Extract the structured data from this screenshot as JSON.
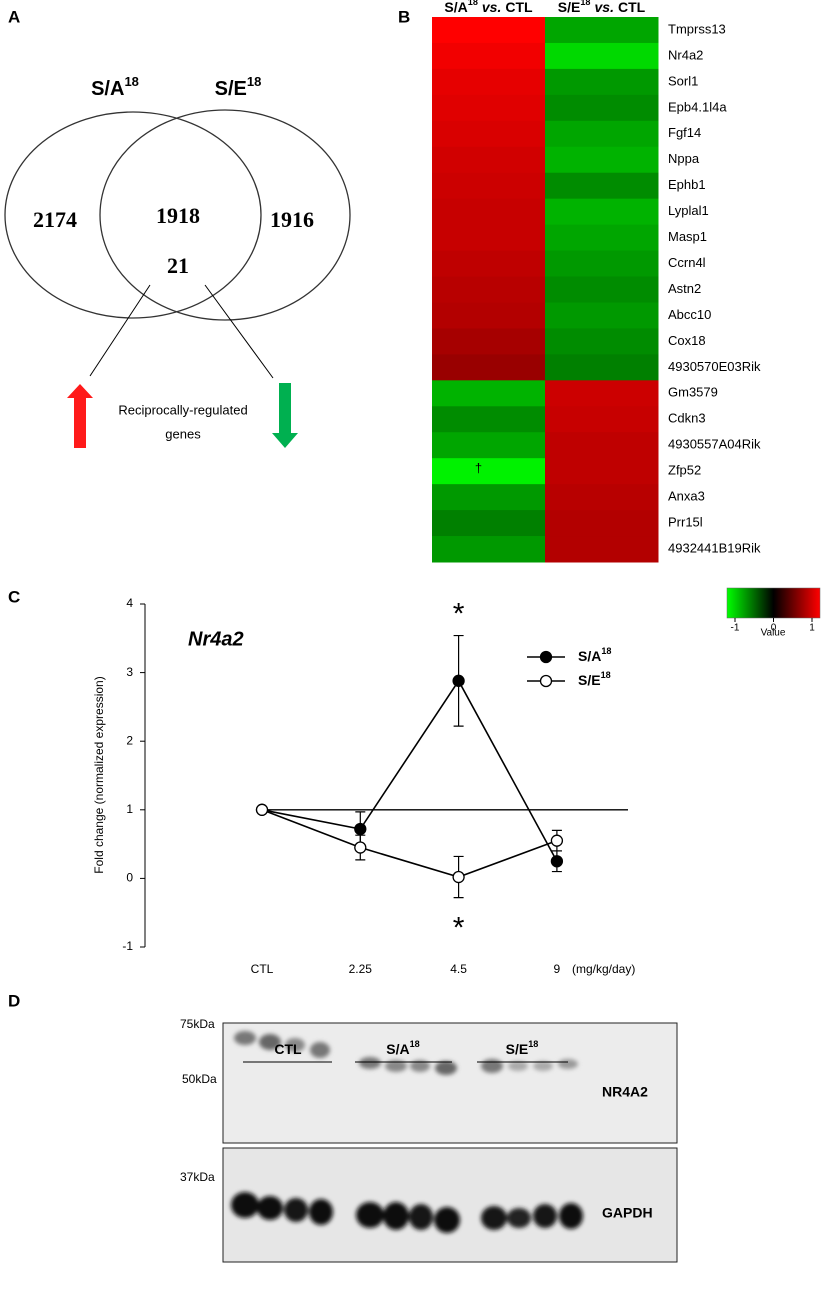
{
  "panel_a": {
    "label": "A",
    "sets": [
      {
        "name": "S/A",
        "sup": "18"
      },
      {
        "name": "S/E",
        "sup": "18"
      }
    ],
    "counts": {
      "only_first": 2174,
      "both": 1918,
      "only_second": 1916,
      "reciprocal": 21
    },
    "annotation": [
      "Reciprocally-regulated",
      "genes"
    ]
  },
  "panel_b": {
    "label": "B",
    "columns": [
      {
        "name": "S/A",
        "sup": "18",
        "vs": "vs.",
        "ref": "CTL"
      },
      {
        "name": "S/E",
        "sup": "18",
        "vs": "vs.",
        "ref": "CTL"
      }
    ],
    "genes": [
      "Tmprss13",
      "Nr4a2",
      "Sorl1",
      "Epb4.1l4a",
      "Fgf14",
      "Nppa",
      "Ephb1",
      "Lyplal1",
      "Masp1",
      "Ccrn4l",
      "Astn2",
      "Abcc10",
      "Cox18",
      "4930570E03Rik",
      "Gm3579",
      "Cdkn3",
      "4930557A04Rik",
      "Zfp52",
      "Anxa3",
      "Prr15l",
      "4932441B19Rik"
    ],
    "values": [
      [
        1.0,
        0.95,
        0.9,
        0.88,
        0.85,
        0.82,
        0.8,
        0.78,
        0.78,
        0.75,
        0.72,
        0.7,
        0.65,
        0.6,
        -0.7,
        -0.55,
        -0.65,
        -0.95,
        -0.6,
        -0.5,
        -0.6
      ],
      [
        -0.65,
        -0.85,
        -0.6,
        -0.55,
        -0.65,
        -0.7,
        -0.55,
        -0.7,
        -0.65,
        -0.6,
        -0.55,
        -0.6,
        -0.55,
        -0.5,
        0.8,
        0.78,
        0.75,
        0.75,
        0.72,
        0.7,
        0.7
      ]
    ],
    "dagger": {
      "text": "†",
      "gene": "Zfp52"
    },
    "colorbar": {
      "ticks": [
        -1,
        0,
        1
      ],
      "label": "Value",
      "colors": [
        "#00ff00",
        "#000000",
        "#ff0000"
      ]
    }
  },
  "panel_c": {
    "label": "C",
    "chart_data": {
      "type": "line",
      "title": "Nr4a2",
      "y_label": "Fold change (normalized expression)",
      "x_unit": "(mg/kg/day)",
      "categories": [
        "CTL",
        "2.25",
        "4.5",
        "9"
      ],
      "ylim": [
        -1,
        4
      ],
      "yticks": [
        -1,
        0,
        1,
        2,
        3,
        4
      ],
      "reference_line": 1,
      "series": [
        {
          "name": "S/A",
          "name_sup": "18",
          "marker": "filled",
          "color": "#000000",
          "values": [
            1,
            0.72,
            2.88,
            0.25
          ],
          "errors": [
            0,
            0.25,
            0.66,
            0.15
          ]
        },
        {
          "name": "S/E",
          "name_sup": "18",
          "marker": "open",
          "color": "#000000",
          "values": [
            1,
            0.45,
            0.02,
            0.55
          ],
          "errors": [
            0,
            0.18,
            0.3,
            0.15
          ]
        }
      ],
      "annotations": [
        "*",
        "*"
      ],
      "legend": "upper right"
    }
  },
  "panel_d": {
    "label": "D",
    "groups": [
      {
        "name": "CTL"
      },
      {
        "name": "S/A",
        "sup": "18"
      },
      {
        "name": "S/E",
        "sup": "18"
      }
    ],
    "markers": [
      "75kDa",
      "50kDa",
      "37kDa"
    ],
    "proteins": [
      "NR4A2",
      "GAPDH"
    ]
  }
}
